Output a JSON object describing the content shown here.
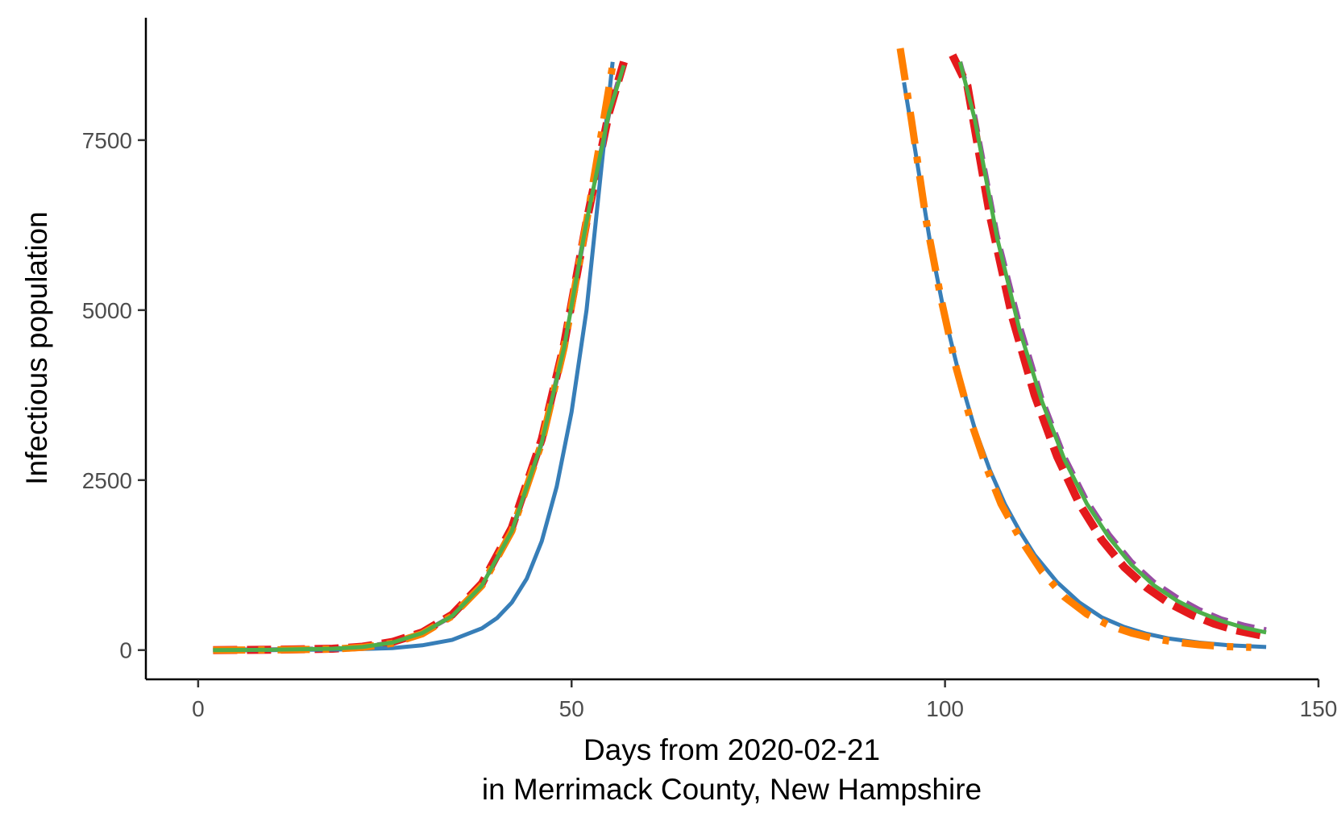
{
  "chart_data": {
    "type": "line",
    "title": "",
    "xlabel": "Days from 2020-02-21",
    "xlabel_line2": "in Merrimack County, New Hampshire",
    "ylabel": "Infectious population",
    "xlim": [
      -7,
      150
    ],
    "ylim": [
      -430,
      9300
    ],
    "x_ticks": [
      0,
      50,
      100,
      150
    ],
    "y_ticks": [
      0,
      2500,
      5000,
      7500
    ],
    "grid": false,
    "legend": "none",
    "series": [
      {
        "color": "#984EA3",
        "dash": "22 12",
        "width": 6,
        "segments": [
          [
            [
              2,
              0
            ],
            [
              10,
              5
            ],
            [
              18,
              20
            ],
            [
              22,
              45
            ],
            [
              26,
              110
            ],
            [
              30,
              250
            ],
            [
              34,
              500
            ],
            [
              38,
              950
            ],
            [
              42,
              1750
            ],
            [
              46,
              3050
            ],
            [
              49,
              4450
            ],
            [
              52,
              6300
            ],
            [
              55,
              7900
            ],
            [
              57,
              8650
            ]
          ],
          [
            [
              102,
              8650
            ],
            [
              104,
              7850
            ],
            [
              107,
              6100
            ],
            [
              110,
              4800
            ],
            [
              113,
              3700
            ],
            [
              116,
              2850
            ],
            [
              119,
              2200
            ],
            [
              122,
              1700
            ],
            [
              125,
              1300
            ],
            [
              128,
              1000
            ],
            [
              131,
              780
            ],
            [
              134,
              600
            ],
            [
              137,
              460
            ],
            [
              140,
              370
            ],
            [
              143,
              300
            ]
          ]
        ]
      },
      {
        "color": "#E41A1C",
        "dash": "30 12",
        "width": 10,
        "segments": [
          [
            [
              2,
              0
            ],
            [
              10,
              5
            ],
            [
              18,
              20
            ],
            [
              22,
              50
            ],
            [
              26,
              120
            ],
            [
              30,
              260
            ],
            [
              34,
              520
            ],
            [
              38,
              980
            ],
            [
              42,
              1800
            ],
            [
              46,
              3100
            ],
            [
              49,
              4500
            ],
            [
              52,
              6300
            ],
            [
              55,
              7900
            ],
            [
              57,
              8650
            ]
          ],
          [
            [
              101,
              8750
            ],
            [
              103,
              8300
            ],
            [
              106,
              6400
            ],
            [
              109,
              4900
            ],
            [
              112,
              3750
            ],
            [
              115,
              2850
            ],
            [
              118,
              2150
            ],
            [
              121,
              1620
            ],
            [
              124,
              1220
            ],
            [
              127,
              920
            ],
            [
              130,
              690
            ],
            [
              133,
              520
            ],
            [
              136,
              390
            ],
            [
              139,
              290
            ],
            [
              143,
              200
            ]
          ]
        ]
      },
      {
        "color": "#377EB8",
        "dash": "",
        "width": 5,
        "segments": [
          [
            [
              2,
              0
            ],
            [
              10,
              2
            ],
            [
              20,
              10
            ],
            [
              26,
              30
            ],
            [
              30,
              70
            ],
            [
              34,
              150
            ],
            [
              38,
              320
            ],
            [
              40,
              470
            ],
            [
              42,
              700
            ],
            [
              44,
              1050
            ],
            [
              46,
              1600
            ],
            [
              48,
              2400
            ],
            [
              50,
              3500
            ],
            [
              52,
              5000
            ],
            [
              54,
              7100
            ],
            [
              55.5,
              8650
            ]
          ],
          [
            [
              94.5,
              8350
            ],
            [
              96,
              7350
            ],
            [
              98,
              6000
            ],
            [
              100,
              4900
            ],
            [
              102,
              4000
            ],
            [
              104,
              3250
            ],
            [
              106,
              2650
            ],
            [
              108,
              2150
            ],
            [
              110,
              1750
            ],
            [
              112,
              1400
            ],
            [
              115,
              1000
            ],
            [
              118,
              700
            ],
            [
              121,
              480
            ],
            [
              124,
              340
            ],
            [
              127,
              240
            ],
            [
              130,
              170
            ],
            [
              134,
              110
            ],
            [
              138,
              70
            ],
            [
              143,
              45
            ]
          ]
        ]
      },
      {
        "color": "#FF7F00",
        "dash": "40 16 8 16",
        "width": 9,
        "segments": [
          [
            [
              2,
              0
            ],
            [
              10,
              3
            ],
            [
              18,
              15
            ],
            [
              22,
              40
            ],
            [
              26,
              100
            ],
            [
              30,
              240
            ],
            [
              34,
              500
            ],
            [
              38,
              950
            ],
            [
              42,
              1750
            ],
            [
              46,
              3050
            ],
            [
              49,
              4450
            ],
            [
              52,
              6300
            ],
            [
              54,
              7600
            ],
            [
              55.5,
              8600
            ]
          ],
          [
            [
              94,
              8850
            ],
            [
              95.5,
              7800
            ],
            [
              97.5,
              6300
            ],
            [
              99.5,
              5150
            ],
            [
              101.5,
              4150
            ],
            [
              103.5,
              3350
            ],
            [
              105.5,
              2700
            ],
            [
              107.5,
              2150
            ],
            [
              110,
              1650
            ],
            [
              113,
              1150
            ],
            [
              116,
              780
            ],
            [
              119,
              530
            ],
            [
              122,
              360
            ],
            [
              125,
              250
            ],
            [
              128,
              170
            ],
            [
              131,
              115
            ],
            [
              134,
              80
            ],
            [
              137,
              55
            ],
            [
              141,
              40
            ]
          ]
        ]
      },
      {
        "color": "#4DAF4A",
        "dash": "",
        "width": 5,
        "segments": [
          [
            [
              2,
              0
            ],
            [
              10,
              5
            ],
            [
              18,
              20
            ],
            [
              22,
              45
            ],
            [
              26,
              110
            ],
            [
              30,
              250
            ],
            [
              34,
              500
            ],
            [
              38,
              950
            ],
            [
              42,
              1750
            ],
            [
              46,
              3050
            ],
            [
              49,
              4450
            ],
            [
              52,
              6300
            ],
            [
              55,
              7900
            ],
            [
              57,
              8600
            ]
          ],
          [
            [
              102,
              8650
            ],
            [
              104,
              7800
            ],
            [
              107,
              6050
            ],
            [
              110,
              4700
            ],
            [
              113,
              3650
            ],
            [
              116,
              2800
            ],
            [
              119,
              2150
            ],
            [
              122,
              1650
            ],
            [
              125,
              1250
            ],
            [
              128,
              950
            ],
            [
              131,
              730
            ],
            [
              134,
              560
            ],
            [
              137,
              430
            ],
            [
              140,
              330
            ],
            [
              143,
              260
            ]
          ]
        ]
      }
    ]
  }
}
